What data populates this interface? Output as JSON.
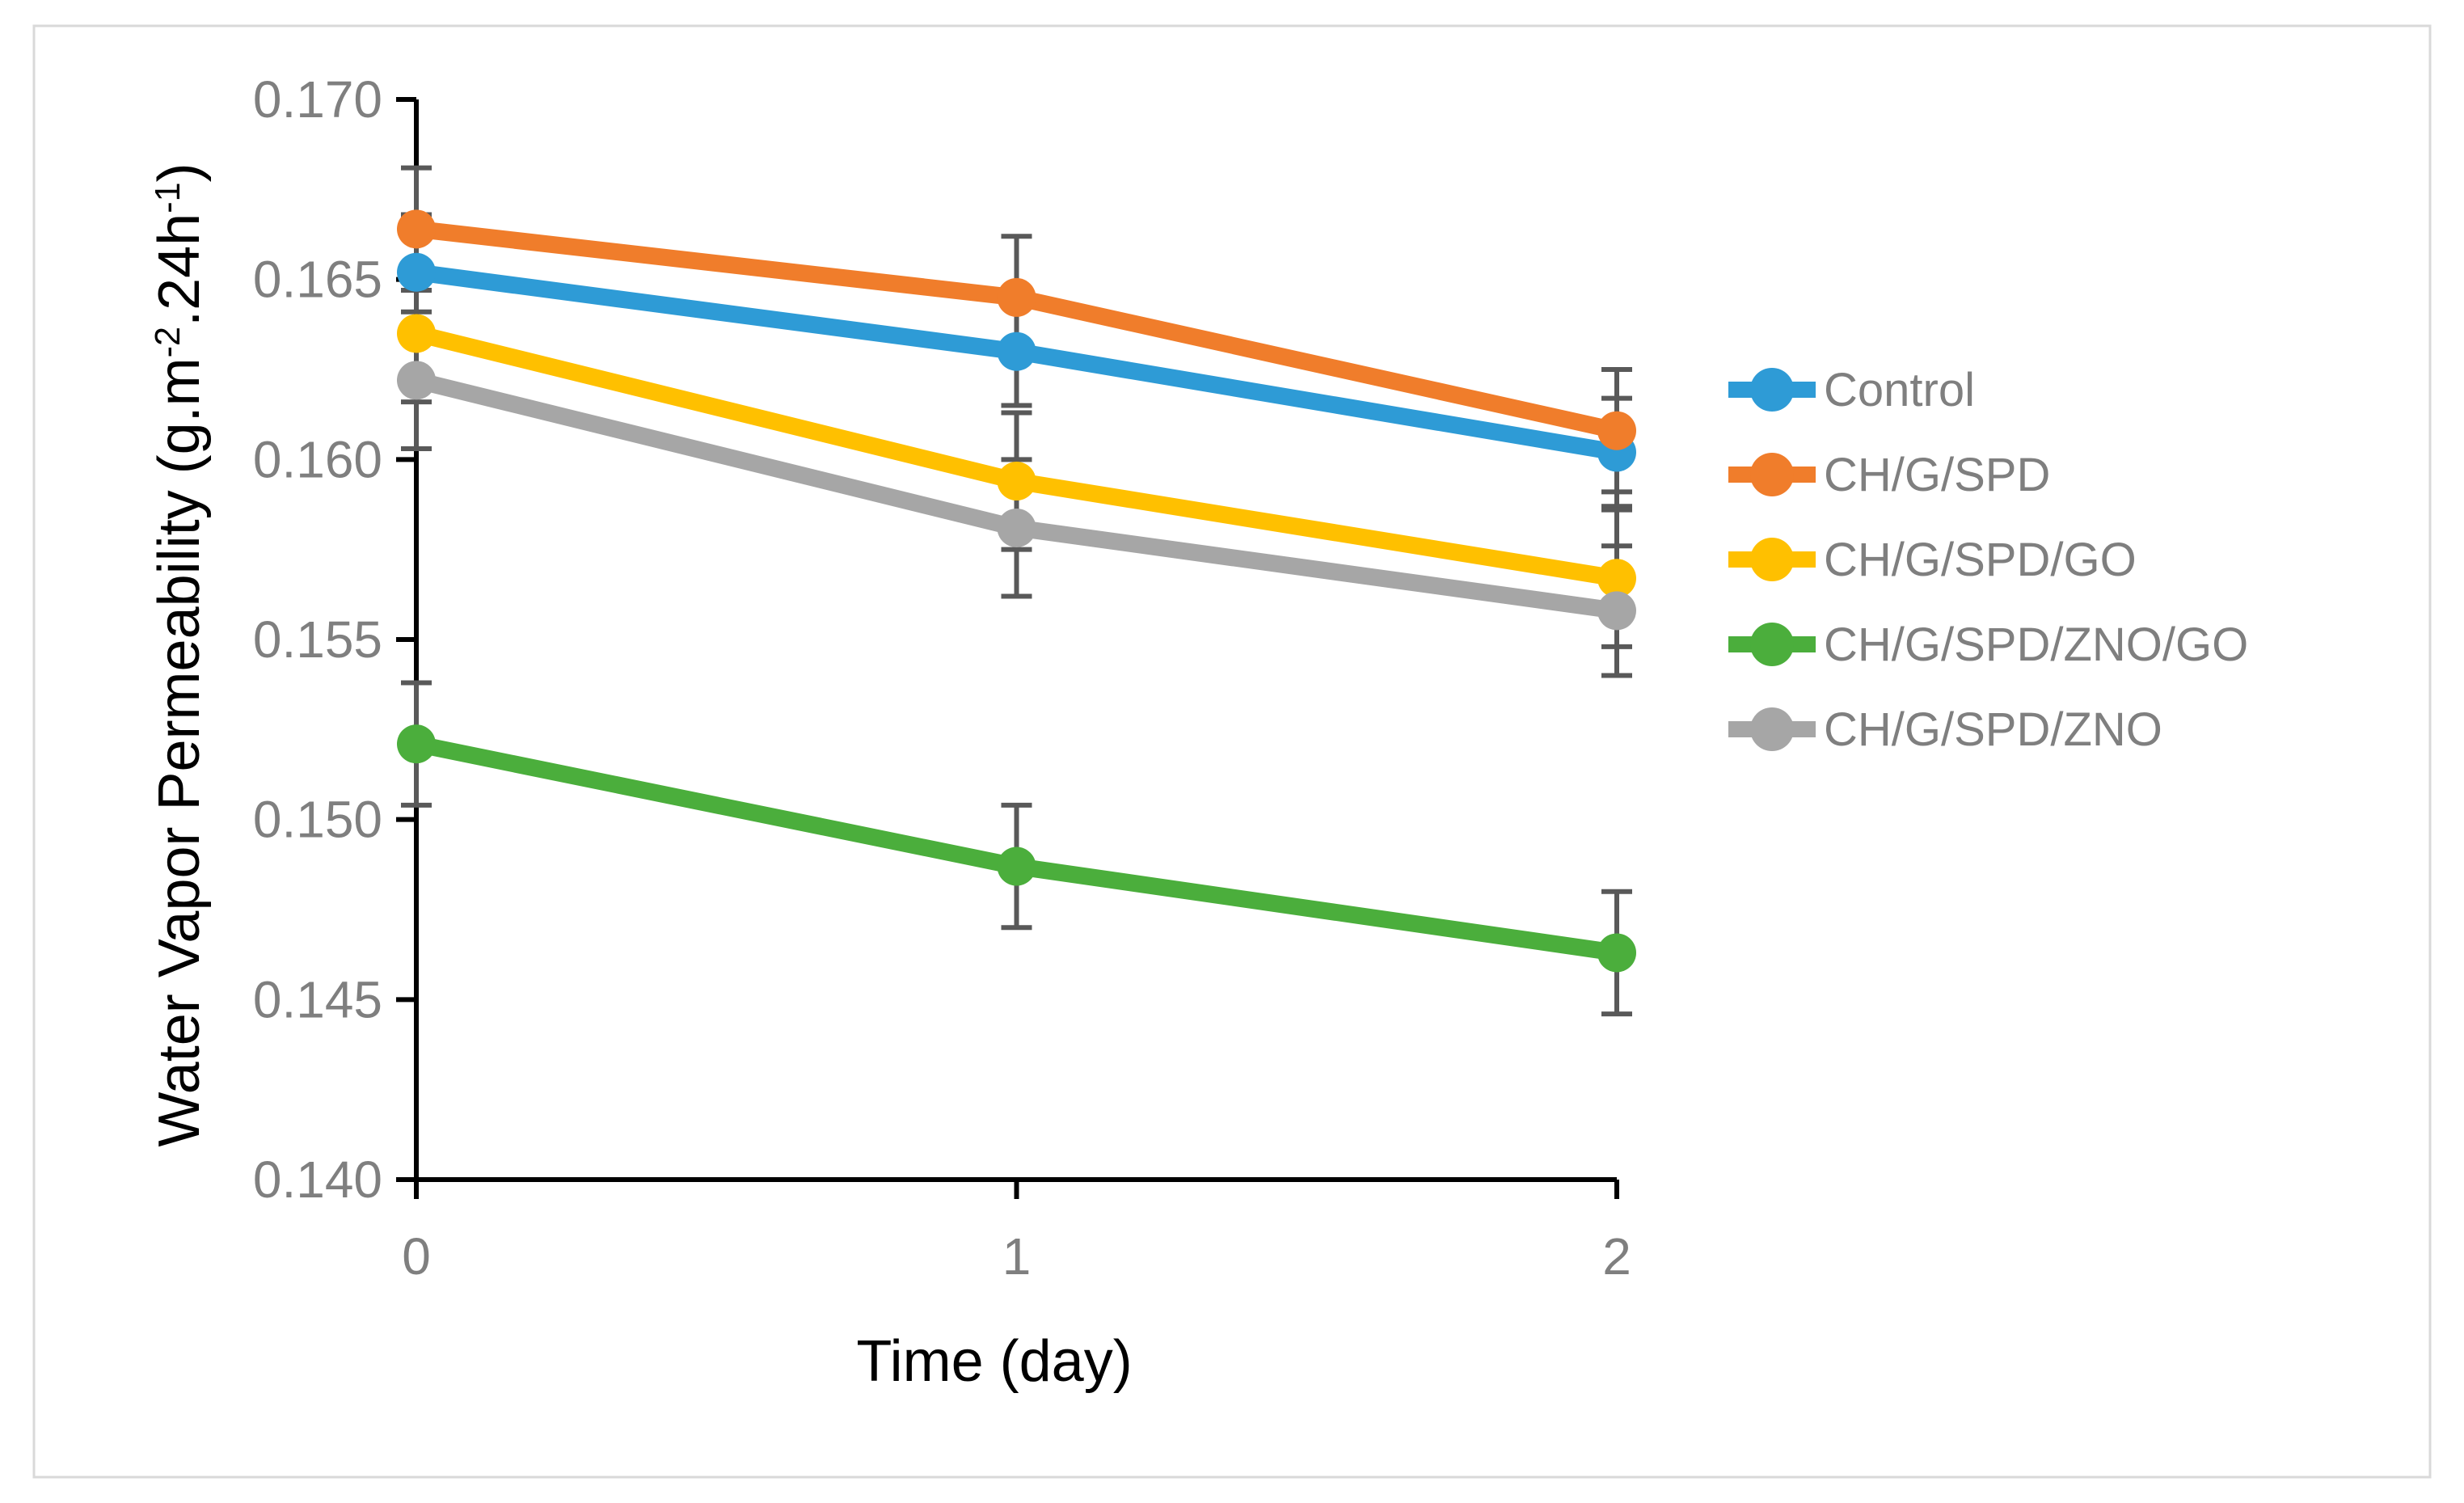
{
  "figure": {
    "x_axis_title": "Time (day)",
    "y_axis_title_plain": "Water Vapor Permeability (g.m⁻².24h⁻¹)",
    "y_axis_title_parts": [
      {
        "t": "Water Vapor Permeability (g.m"
      },
      {
        "t": "-2",
        "sup": true
      },
      {
        "t": ".24h"
      },
      {
        "t": "-1",
        "sup": true
      },
      {
        "t": ")"
      }
    ]
  },
  "chart_data": {
    "type": "line",
    "x": [
      0,
      1,
      2
    ],
    "x_tick_labels": [
      "0",
      "1",
      "2"
    ],
    "y_tick_labels": [
      "0.170",
      "0.165",
      "0.160",
      "0.155",
      "0.150",
      "0.145",
      "0.140"
    ],
    "xlabel": "Time (day)",
    "ylabel": "Water Vapor Permeability (g.m⁻².24h⁻¹)",
    "ylim": [
      0.14,
      0.17
    ],
    "y_tick_step": 0.005,
    "grid": false,
    "legend_position": "right",
    "error_bars": true,
    "series": [
      {
        "name": "Control",
        "color": "#2E9BD6",
        "values": [
          0.1652,
          0.163,
          0.1602
        ],
        "errors": [
          0.0016,
          0.0015,
          0.0015
        ]
      },
      {
        "name": "CH/G/SPD",
        "color": "#F07D2B",
        "values": [
          0.1664,
          0.1645,
          0.1608
        ],
        "errors": [
          0.0017,
          0.0017,
          0.0017
        ]
      },
      {
        "name": "CH/G/SPD/GO",
        "color": "#FFC000",
        "values": [
          0.1635,
          0.1594,
          0.1567
        ],
        "errors": [
          0.0019,
          0.0019,
          0.0019
        ]
      },
      {
        "name": "CH/G/SPD/ZNO/GO",
        "color": "#4BAE3C",
        "values": [
          0.1521,
          0.1487,
          0.1463
        ],
        "errors": [
          0.0017,
          0.0017,
          0.0017
        ]
      },
      {
        "name": "CH/G/SPD/ZNO",
        "color": "#A6A6A6",
        "values": [
          0.1622,
          0.1581,
          0.1558
        ],
        "errors": [
          0.0019,
          0.0019,
          0.0018
        ]
      }
    ],
    "colors": {
      "error_bar": "#595959",
      "tick_label": "#7F7F7F",
      "axis": "#000000",
      "figure_border": "#D9D9D9",
      "legend_text": "#7F7F7F"
    }
  }
}
